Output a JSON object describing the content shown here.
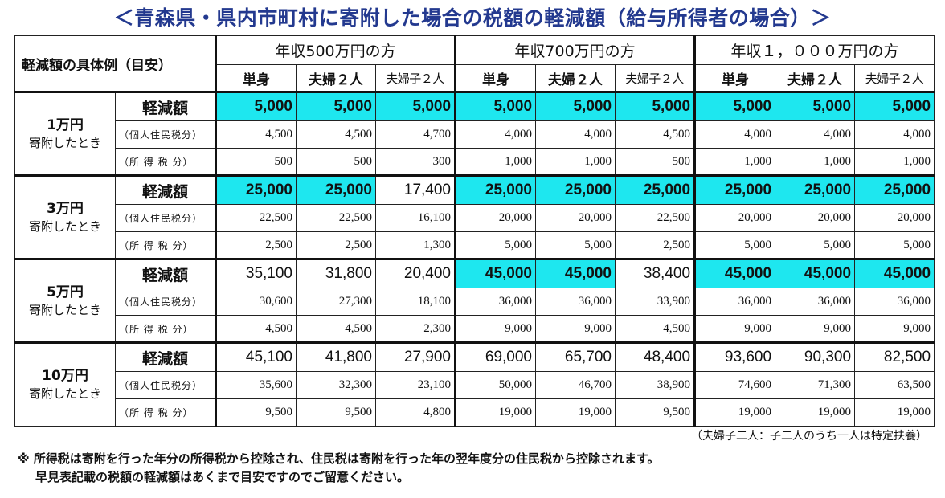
{
  "title": "＜青森県・県内市町村に寄附した場合の税額の軽減額（給与所得者の場合）＞",
  "header": {
    "corner": "軽減額の具体例（目安）",
    "incomes": [
      "年収500万円の方",
      "年収700万円の方",
      "年収１，０００万円の方"
    ],
    "households": [
      "単身",
      "夫婦２人",
      "夫婦子２人"
    ]
  },
  "groups": [
    {
      "donation": "1万円",
      "donation_sub": "寄附したとき",
      "rows": [
        {
          "label": "軽減額",
          "values": [
            "5,000",
            "5,000",
            "5,000",
            "5,000",
            "5,000",
            "5,000",
            "5,000",
            "5,000",
            "5,000"
          ],
          "highlight": [
            true,
            true,
            true,
            true,
            true,
            true,
            true,
            true,
            true
          ]
        },
        {
          "label": "（個人住民税分）",
          "values": [
            "4,500",
            "4,500",
            "4,700",
            "4,000",
            "4,000",
            "4,500",
            "4,000",
            "4,000",
            "4,000"
          ]
        },
        {
          "label": "（所 得 税 分）",
          "values": [
            "500",
            "500",
            "300",
            "1,000",
            "1,000",
            "500",
            "1,000",
            "1,000",
            "1,000"
          ]
        }
      ]
    },
    {
      "donation": "3万円",
      "donation_sub": "寄附したとき",
      "rows": [
        {
          "label": "軽減額",
          "values": [
            "25,000",
            "25,000",
            "17,400",
            "25,000",
            "25,000",
            "25,000",
            "25,000",
            "25,000",
            "25,000"
          ],
          "highlight": [
            true,
            true,
            false,
            true,
            true,
            true,
            true,
            true,
            true
          ]
        },
        {
          "label": "（個人住民税分）",
          "values": [
            "22,500",
            "22,500",
            "16,100",
            "20,000",
            "20,000",
            "22,500",
            "20,000",
            "20,000",
            "20,000"
          ]
        },
        {
          "label": "（所 得 税 分）",
          "values": [
            "2,500",
            "2,500",
            "1,300",
            "5,000",
            "5,000",
            "2,500",
            "5,000",
            "5,000",
            "5,000"
          ]
        }
      ]
    },
    {
      "donation": "5万円",
      "donation_sub": "寄附したとき",
      "rows": [
        {
          "label": "軽減額",
          "values": [
            "35,100",
            "31,800",
            "20,400",
            "45,000",
            "45,000",
            "38,400",
            "45,000",
            "45,000",
            "45,000"
          ],
          "highlight": [
            false,
            false,
            false,
            true,
            true,
            false,
            true,
            true,
            true
          ]
        },
        {
          "label": "（個人住民税分）",
          "values": [
            "30,600",
            "27,300",
            "18,100",
            "36,000",
            "36,000",
            "33,900",
            "36,000",
            "36,000",
            "36,000"
          ]
        },
        {
          "label": "（所 得 税 分）",
          "values": [
            "4,500",
            "4,500",
            "2,300",
            "9,000",
            "9,000",
            "4,500",
            "9,000",
            "9,000",
            "9,000"
          ]
        }
      ]
    },
    {
      "donation": "10万円",
      "donation_sub": "寄附したとき",
      "rows": [
        {
          "label": "軽減額",
          "values": [
            "45,100",
            "41,800",
            "27,900",
            "69,000",
            "65,700",
            "48,400",
            "93,600",
            "90,300",
            "82,500"
          ],
          "highlight": [
            false,
            false,
            false,
            false,
            false,
            false,
            false,
            false,
            false
          ]
        },
        {
          "label": "（個人住民税分）",
          "values": [
            "35,600",
            "32,300",
            "23,100",
            "50,000",
            "46,700",
            "38,900",
            "74,600",
            "71,300",
            "63,500"
          ]
        },
        {
          "label": "（所 得 税 分）",
          "values": [
            "9,500",
            "9,500",
            "4,800",
            "19,000",
            "19,000",
            "9,500",
            "19,000",
            "19,000",
            "19,000"
          ]
        }
      ]
    }
  ],
  "colors": {
    "highlight": "#1ee7ef",
    "title": "#23398f"
  },
  "note_right": "（夫婦子二人：子二人のうち一人は特定扶養）",
  "notes": [
    "※ 所得税は寄附を行った年分の所得税から控除され、住民税は寄附を行った年の翌年度分の住民税から控除されます。",
    "早見表記載の税額の軽減額はあくまで目安ですのでご留意ください。"
  ]
}
